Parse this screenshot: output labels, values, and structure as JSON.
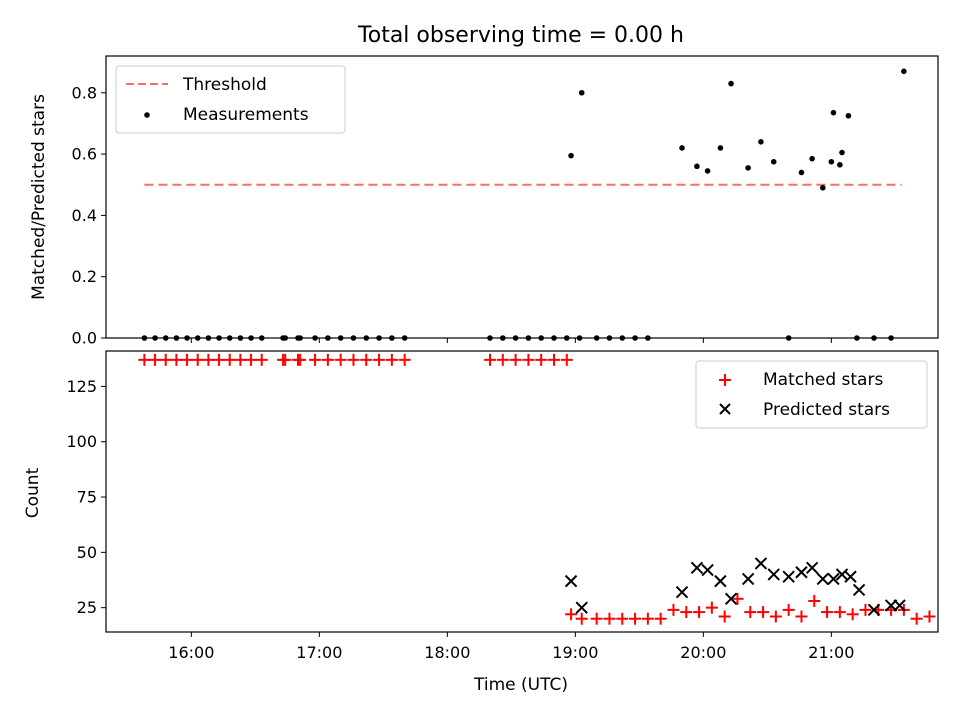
{
  "chart_data": [
    {
      "type": "scatter",
      "title": "Total observing time = 0.00 h",
      "xlabel": "",
      "ylabel": "Matched/Predicted stars",
      "xlim": [
        "15:20",
        "21:50"
      ],
      "ylim": [
        0,
        0.92
      ],
      "yticks": [
        0.0,
        0.2,
        0.4,
        0.6,
        0.8
      ],
      "ytick_labels": [
        "0.0",
        "0.2",
        "0.4",
        "0.6",
        "0.8"
      ],
      "legend": {
        "position": "top-left",
        "entries": [
          "Threshold",
          "Measurements"
        ]
      },
      "colors": {
        "threshold": "#ff6b6b",
        "measurements": "#000000"
      },
      "series": [
        {
          "name": "Threshold",
          "style": "dashed-line",
          "x": [
            "15:38",
            "21:33"
          ],
          "y": [
            0.5,
            0.5
          ]
        },
        {
          "name": "Measurements",
          "style": "dot",
          "x": [
            "15:38",
            "15:43",
            "15:48",
            "15:53",
            "15:58",
            "16:03",
            "16:08",
            "16:13",
            "16:18",
            "16:23",
            "16:28",
            "16:33",
            "16:43",
            "16:44",
            "16:50",
            "16:51",
            "16:58",
            "17:04",
            "17:10",
            "17:16",
            "17:22",
            "17:28",
            "17:34",
            "17:40",
            "18:20",
            "18:26",
            "18:32",
            "18:38",
            "18:44",
            "18:50",
            "18:56",
            "19:02",
            "18:58",
            "19:03",
            "19:10",
            "19:16",
            "19:22",
            "19:28",
            "19:34",
            "19:50",
            "19:57",
            "20:02",
            "20:08",
            "20:13",
            "20:21",
            "20:27",
            "20:33",
            "20:40",
            "20:46",
            "20:51",
            "20:56",
            "20:61",
            "20:65",
            "21:00",
            "21:04",
            "21:08",
            "21:12",
            "21:20",
            "21:28",
            "21:34"
          ],
          "y": [
            0,
            0,
            0,
            0,
            0,
            0,
            0,
            0,
            0,
            0,
            0,
            0,
            0,
            0,
            0,
            0,
            0,
            0,
            0,
            0,
            0,
            0,
            0,
            0,
            0,
            0,
            0,
            0,
            0,
            0,
            0,
            0,
            0.595,
            0.8,
            0,
            0,
            0,
            0,
            0,
            0.62,
            0.56,
            0.545,
            0.62,
            0.83,
            0.555,
            0.64,
            0.575,
            0,
            0.54,
            0.585,
            0.49,
            0.735,
            0.605,
            0.575,
            0.565,
            0.725,
            0,
            0,
            0,
            0.87
          ]
        }
      ]
    },
    {
      "type": "scatter",
      "title": "",
      "xlabel": "Time (UTC)",
      "ylabel": "Count",
      "xlim": [
        "15:20",
        "21:50"
      ],
      "ylim": [
        14,
        141
      ],
      "yticks": [
        25,
        50,
        75,
        100,
        125
      ],
      "ytick_labels": [
        "25",
        "50",
        "75",
        "100",
        "125"
      ],
      "xticks": [
        "16:00",
        "17:00",
        "18:00",
        "19:00",
        "20:00",
        "21:00"
      ],
      "legend": {
        "position": "top-right",
        "entries": [
          "Matched stars",
          "Predicted stars"
        ]
      },
      "colors": {
        "matched": "#ff0000",
        "predicted": "#000000"
      },
      "series": [
        {
          "name": "Matched stars",
          "marker": "plus",
          "x": [
            "15:38",
            "15:43",
            "15:48",
            "15:53",
            "15:58",
            "16:03",
            "16:08",
            "16:13",
            "16:18",
            "16:23",
            "16:28",
            "16:33",
            "16:43",
            "16:44",
            "16:50",
            "16:51",
            "16:58",
            "17:04",
            "17:10",
            "17:16",
            "17:22",
            "17:28",
            "17:34",
            "17:40",
            "18:20",
            "18:26",
            "18:32",
            "18:38",
            "18:44",
            "18:50",
            "18:56",
            "18:58",
            "19:03",
            "19:10",
            "19:16",
            "19:22",
            "19:28",
            "19:34",
            "19:40",
            "19:46",
            "19:52",
            "19:58",
            "20:04",
            "20:10",
            "20:16",
            "20:22",
            "20:28",
            "20:34",
            "20:40",
            "20:46",
            "20:52",
            "20:58",
            "21:04",
            "21:10",
            "21:16",
            "21:22",
            "21:28",
            "21:34",
            "21:40",
            "21:46"
          ],
          "y": [
            137,
            137,
            137,
            137,
            137,
            137,
            137,
            137,
            137,
            137,
            137,
            137,
            137,
            137,
            137,
            137,
            137,
            137,
            137,
            137,
            137,
            137,
            137,
            137,
            137,
            137,
            137,
            137,
            137,
            137,
            137,
            22,
            20,
            20,
            20,
            20,
            20,
            20,
            20,
            24,
            23,
            23,
            25,
            21,
            29,
            23,
            23,
            21,
            24,
            21,
            28,
            23,
            23,
            22,
            24,
            24,
            24,
            24,
            20,
            21
          ]
        },
        {
          "name": "Predicted stars",
          "marker": "x",
          "x": [
            "18:58",
            "19:03",
            "19:50",
            "19:57",
            "20:02",
            "20:08",
            "20:13",
            "20:21",
            "20:27",
            "20:33",
            "20:40",
            "20:46",
            "20:51",
            "20:56",
            "21:01",
            "21:05",
            "21:09",
            "21:13",
            "21:20",
            "21:28",
            "21:32"
          ],
          "y": [
            37,
            25,
            32,
            43,
            42,
            37,
            29,
            38,
            45,
            40,
            39,
            41,
            43,
            38,
            38,
            40,
            39,
            33,
            24,
            26,
            26
          ]
        }
      ]
    }
  ]
}
